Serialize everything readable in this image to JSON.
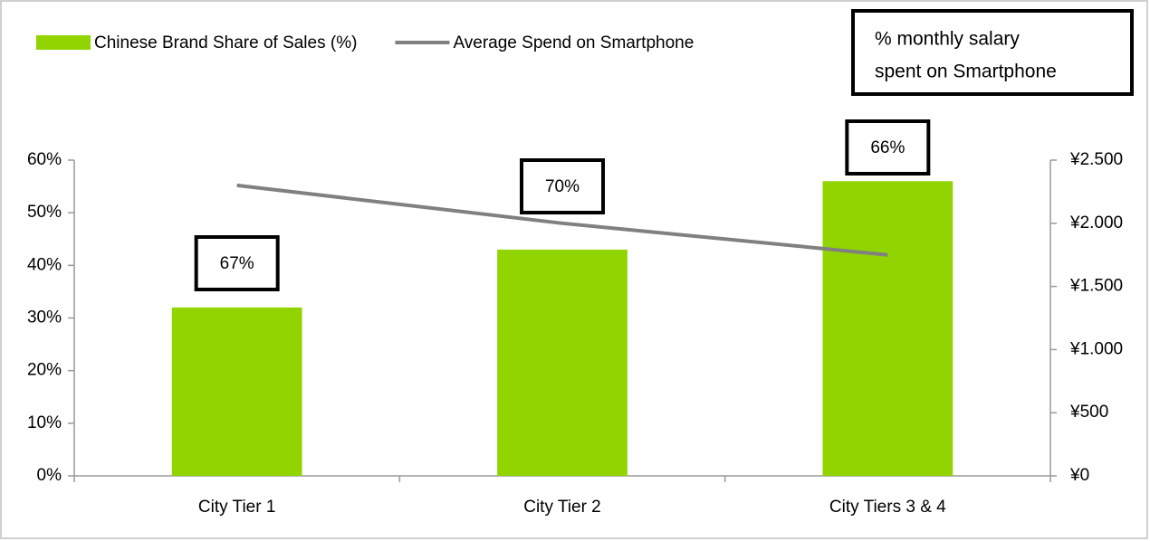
{
  "chart_data": {
    "type": "bar",
    "categories": [
      "City Tier 1",
      "City Tier 2",
      "City Tiers 3 & 4"
    ],
    "series": [
      {
        "name": "Chinese Brand Share of Sales (%)",
        "type": "bar",
        "color": "#92d400",
        "values": [
          32,
          43,
          56
        ]
      },
      {
        "name": "Average Spend on Smartphone",
        "type": "line",
        "color": "#808080",
        "axis": "y2",
        "values": [
          2300,
          2000,
          1750
        ]
      }
    ],
    "ylim": [
      0,
      60
    ],
    "yticks": [
      {
        "value": 0,
        "label": "0%"
      },
      {
        "value": 10,
        "label": "10%"
      },
      {
        "value": 20,
        "label": "20%"
      },
      {
        "value": 30,
        "label": "30%"
      },
      {
        "value": 40,
        "label": "40%"
      },
      {
        "value": 50,
        "label": "50%"
      },
      {
        "value": 60,
        "label": "60%"
      }
    ],
    "y2lim": [
      0,
      2500
    ],
    "y2ticks": [
      {
        "value": 0,
        "label": "¥0"
      },
      {
        "value": 500,
        "label": "¥500"
      },
      {
        "value": 1000,
        "label": "¥1.000"
      },
      {
        "value": 1500,
        "label": "¥1.500"
      },
      {
        "value": 2000,
        "label": "¥2.000"
      },
      {
        "value": 2500,
        "label": "¥2.500"
      }
    ],
    "annotation_title": [
      "% monthly salary",
      "spent on Smartphone"
    ],
    "annotations": [
      "67%",
      "70%",
      "66%"
    ],
    "legend": "top"
  }
}
